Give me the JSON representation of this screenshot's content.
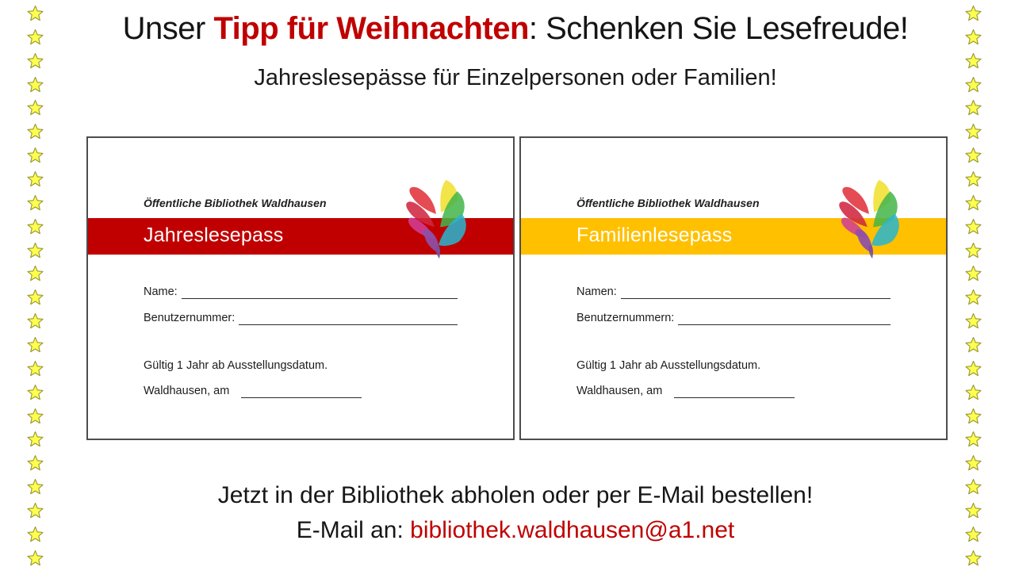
{
  "header": {
    "title_prefix": "Unser ",
    "title_highlight": "Tipp für Weihnachten",
    "title_suffix": ": Schenken Sie Lesefreude!",
    "subtitle": "Jahreslesepässe für Einzelpersonen oder Familien!"
  },
  "cards": [
    {
      "library": "Öffentliche Bibliothek Waldhausen",
      "banner": "Jahreslesepass",
      "banner_color": "#c00000",
      "field1_label": "Name:",
      "field2_label": "Benutzernummer:",
      "validity": "Gültig 1 Jahr ab Ausstellungsdatum.",
      "place_label": "Waldhausen, am"
    },
    {
      "library": "Öffentliche Bibliothek Waldhausen",
      "banner": "Familienlesepass",
      "banner_color": "#ffc000",
      "field1_label": "Namen:",
      "field2_label": "Benutzernummern:",
      "validity": "Gültig 1 Jahr ab Ausstellungsdatum.",
      "place_label": "Waldhausen, am"
    }
  ],
  "footer": {
    "line1": "Jetzt in der Bibliothek abholen oder per E-Mail bestellen!",
    "email_label": "E-Mail an: ",
    "email": "bibliothek.waldhausen@a1.net"
  },
  "icons": {
    "star_icon": "star-icon",
    "logo_icon": "butterfly-book-logo"
  },
  "colors": {
    "accent_red": "#c00000",
    "accent_gold": "#ffc000",
    "star_fill": "#ffff4f",
    "star_stroke": "#96962f",
    "card_border": "#4d4d4d"
  },
  "star_border": {
    "count_per_side": 24
  }
}
